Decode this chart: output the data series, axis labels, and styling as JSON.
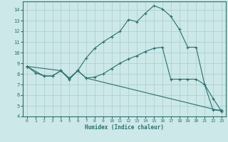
{
  "xlabel": "Humidex (Indice chaleur)",
  "background_color": "#cce8e8",
  "line_color": "#2d6e6e",
  "grid_color": "#aacccc",
  "xlim": [
    -0.5,
    23.5
  ],
  "ylim": [
    4,
    14.8
  ],
  "xticks": [
    0,
    1,
    2,
    3,
    4,
    5,
    6,
    7,
    8,
    9,
    10,
    11,
    12,
    13,
    14,
    15,
    16,
    17,
    18,
    19,
    20,
    21,
    22,
    23
  ],
  "yticks": [
    4,
    5,
    6,
    7,
    8,
    9,
    10,
    11,
    12,
    13,
    14
  ],
  "line1_x": [
    0,
    1,
    2,
    3,
    4,
    5,
    6,
    7,
    8,
    9,
    10,
    11,
    12,
    13,
    14,
    15,
    16,
    17,
    18,
    19,
    20,
    21,
    22,
    23
  ],
  "line1_y": [
    8.7,
    8.1,
    7.8,
    7.8,
    8.3,
    7.5,
    8.3,
    9.5,
    10.4,
    11.0,
    11.5,
    12.0,
    13.1,
    12.9,
    13.7,
    14.4,
    14.1,
    13.4,
    12.2,
    10.5,
    10.5,
    7.0,
    5.7,
    4.5
  ],
  "line2_x": [
    0,
    2,
    3,
    4,
    5,
    6,
    7,
    23
  ],
  "line2_y": [
    8.7,
    7.8,
    7.8,
    8.3,
    7.5,
    8.3,
    7.6,
    4.5
  ],
  "line3_x": [
    0,
    4,
    5,
    6,
    7,
    8,
    9,
    10,
    11,
    12,
    13,
    14,
    15,
    16,
    17,
    18,
    19,
    20,
    21,
    22,
    23
  ],
  "line3_y": [
    8.7,
    8.3,
    7.6,
    8.3,
    7.6,
    7.7,
    8.0,
    8.5,
    9.0,
    9.4,
    9.7,
    10.1,
    10.4,
    10.5,
    7.5,
    7.5,
    7.5,
    7.5,
    7.0,
    4.6,
    4.6
  ]
}
